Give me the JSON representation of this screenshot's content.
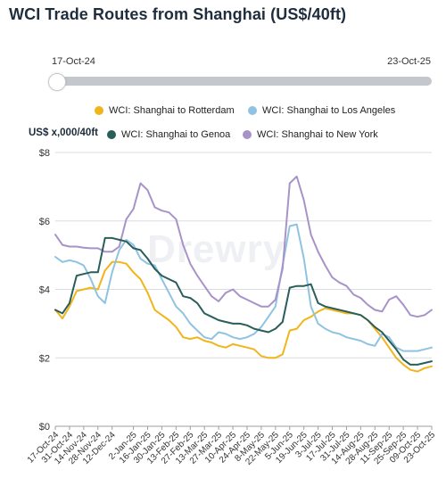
{
  "title": "WCI Trade Routes from Shanghai (US$/40ft)",
  "range": {
    "start_label": "17-Oct-24",
    "end_label": "23-Oct-25",
    "handle_position": 0
  },
  "watermark": "Drewry",
  "colors": {
    "rotterdam": "#f1b51c",
    "los_angeles": "#8fc3e1",
    "genoa": "#2a5e5a",
    "new_york": "#a893c9",
    "grid": "#d9dde2",
    "axis": "#333333"
  },
  "chart_data": {
    "type": "line",
    "ylabel": "US$ x,000/40ft",
    "ylim": [
      0,
      8
    ],
    "yticks": [
      "$0",
      "$2",
      "$4",
      "$6",
      "$8"
    ],
    "ytick_values": [
      0,
      2,
      4,
      6,
      8
    ],
    "legend_placement": "top",
    "grid": true,
    "x_tick_labels": [
      "17-Oct-24",
      "31-Oct-24",
      "14-Nov-24",
      "28-Nov-24",
      "12-Dec-24",
      "2-Jan-25",
      "16-Jan-25",
      "30-Jan-25",
      "13-Feb-25",
      "27-Feb-25",
      "13-Mar-25",
      "27-Mar-25",
      "10-Apr-25",
      "24-Apr-25",
      "8-May-25",
      "22-May-25",
      "5-Jun-25",
      "19-Jun-25",
      "3-Jul-25",
      "17-Jul-25",
      "31-Jul-25",
      "14-Aug-25",
      "28-Aug-25",
      "11-Sep-25",
      "25-Sep-25",
      "09-Oct-25",
      "23-Oct-25"
    ],
    "x_tick_index": [
      0,
      2,
      4,
      6,
      8,
      11,
      13,
      15,
      17,
      19,
      21,
      23,
      25,
      27,
      29,
      31,
      33,
      35,
      37,
      39,
      41,
      43,
      45,
      47,
      49,
      51,
      53
    ],
    "series": [
      {
        "name": "WCI: Shanghai to Rotterdam",
        "color_key": "rotterdam",
        "values": [
          3.4,
          3.15,
          3.5,
          3.95,
          4.0,
          4.05,
          4.0,
          4.55,
          4.8,
          4.8,
          4.75,
          4.5,
          4.3,
          3.9,
          3.4,
          3.25,
          3.1,
          2.9,
          2.6,
          2.55,
          2.6,
          2.5,
          2.45,
          2.35,
          2.3,
          2.4,
          2.35,
          2.3,
          2.25,
          2.05,
          2.0,
          2.0,
          2.1,
          2.8,
          2.85,
          3.1,
          3.2,
          3.35,
          3.45,
          3.4,
          3.35,
          3.3,
          3.3,
          3.25,
          3.1,
          2.85,
          2.6,
          2.3,
          2.0,
          1.8,
          1.65,
          1.6,
          1.7,
          1.75
        ]
      },
      {
        "name": "WCI: Shanghai to Genoa",
        "color_key": "genoa",
        "values": [
          3.4,
          3.3,
          3.6,
          4.4,
          4.45,
          4.5,
          4.5,
          5.5,
          5.5,
          5.45,
          5.4,
          5.2,
          5.15,
          4.9,
          4.6,
          4.4,
          4.3,
          4.2,
          3.8,
          3.75,
          3.6,
          3.3,
          3.2,
          3.1,
          3.05,
          3.0,
          3.0,
          2.95,
          2.85,
          2.8,
          2.75,
          2.85,
          3.05,
          4.05,
          4.1,
          4.1,
          4.15,
          3.6,
          3.5,
          3.45,
          3.4,
          3.35,
          3.3,
          3.25,
          3.1,
          2.9,
          2.75,
          2.5,
          2.25,
          1.95,
          1.8,
          1.8,
          1.85,
          1.9
        ]
      },
      {
        "name": "WCI: Shanghai to Los Angeles",
        "color_key": "los_angeles",
        "values": [
          4.95,
          4.8,
          4.85,
          4.8,
          4.7,
          4.3,
          3.8,
          3.6,
          4.5,
          5.15,
          5.45,
          5.3,
          4.9,
          4.75,
          4.7,
          4.3,
          3.9,
          3.5,
          3.3,
          3.0,
          2.8,
          2.6,
          2.55,
          2.75,
          2.7,
          2.6,
          2.55,
          2.6,
          2.7,
          2.9,
          3.2,
          3.5,
          4.7,
          5.85,
          5.9,
          4.9,
          3.5,
          3.0,
          2.85,
          2.75,
          2.7,
          2.6,
          2.55,
          2.5,
          2.4,
          2.35,
          2.7,
          2.6,
          2.3,
          2.2,
          2.2,
          2.2,
          2.25,
          2.3
        ]
      },
      {
        "name": "WCI: Shanghai to New York",
        "color_key": "new_york",
        "values": [
          5.6,
          5.3,
          5.25,
          5.25,
          5.22,
          5.2,
          5.2,
          5.1,
          5.1,
          5.25,
          6.05,
          6.35,
          7.1,
          6.9,
          6.4,
          6.3,
          6.25,
          6.05,
          5.3,
          4.75,
          4.4,
          4.1,
          3.8,
          3.65,
          3.9,
          4.0,
          3.8,
          3.7,
          3.6,
          3.5,
          3.5,
          3.7,
          4.6,
          7.1,
          7.3,
          6.6,
          5.6,
          5.1,
          4.7,
          4.35,
          4.2,
          4.1,
          3.85,
          3.75,
          3.55,
          3.4,
          3.35,
          3.7,
          3.8,
          3.55,
          3.25,
          3.2,
          3.25,
          3.4
        ]
      }
    ]
  }
}
